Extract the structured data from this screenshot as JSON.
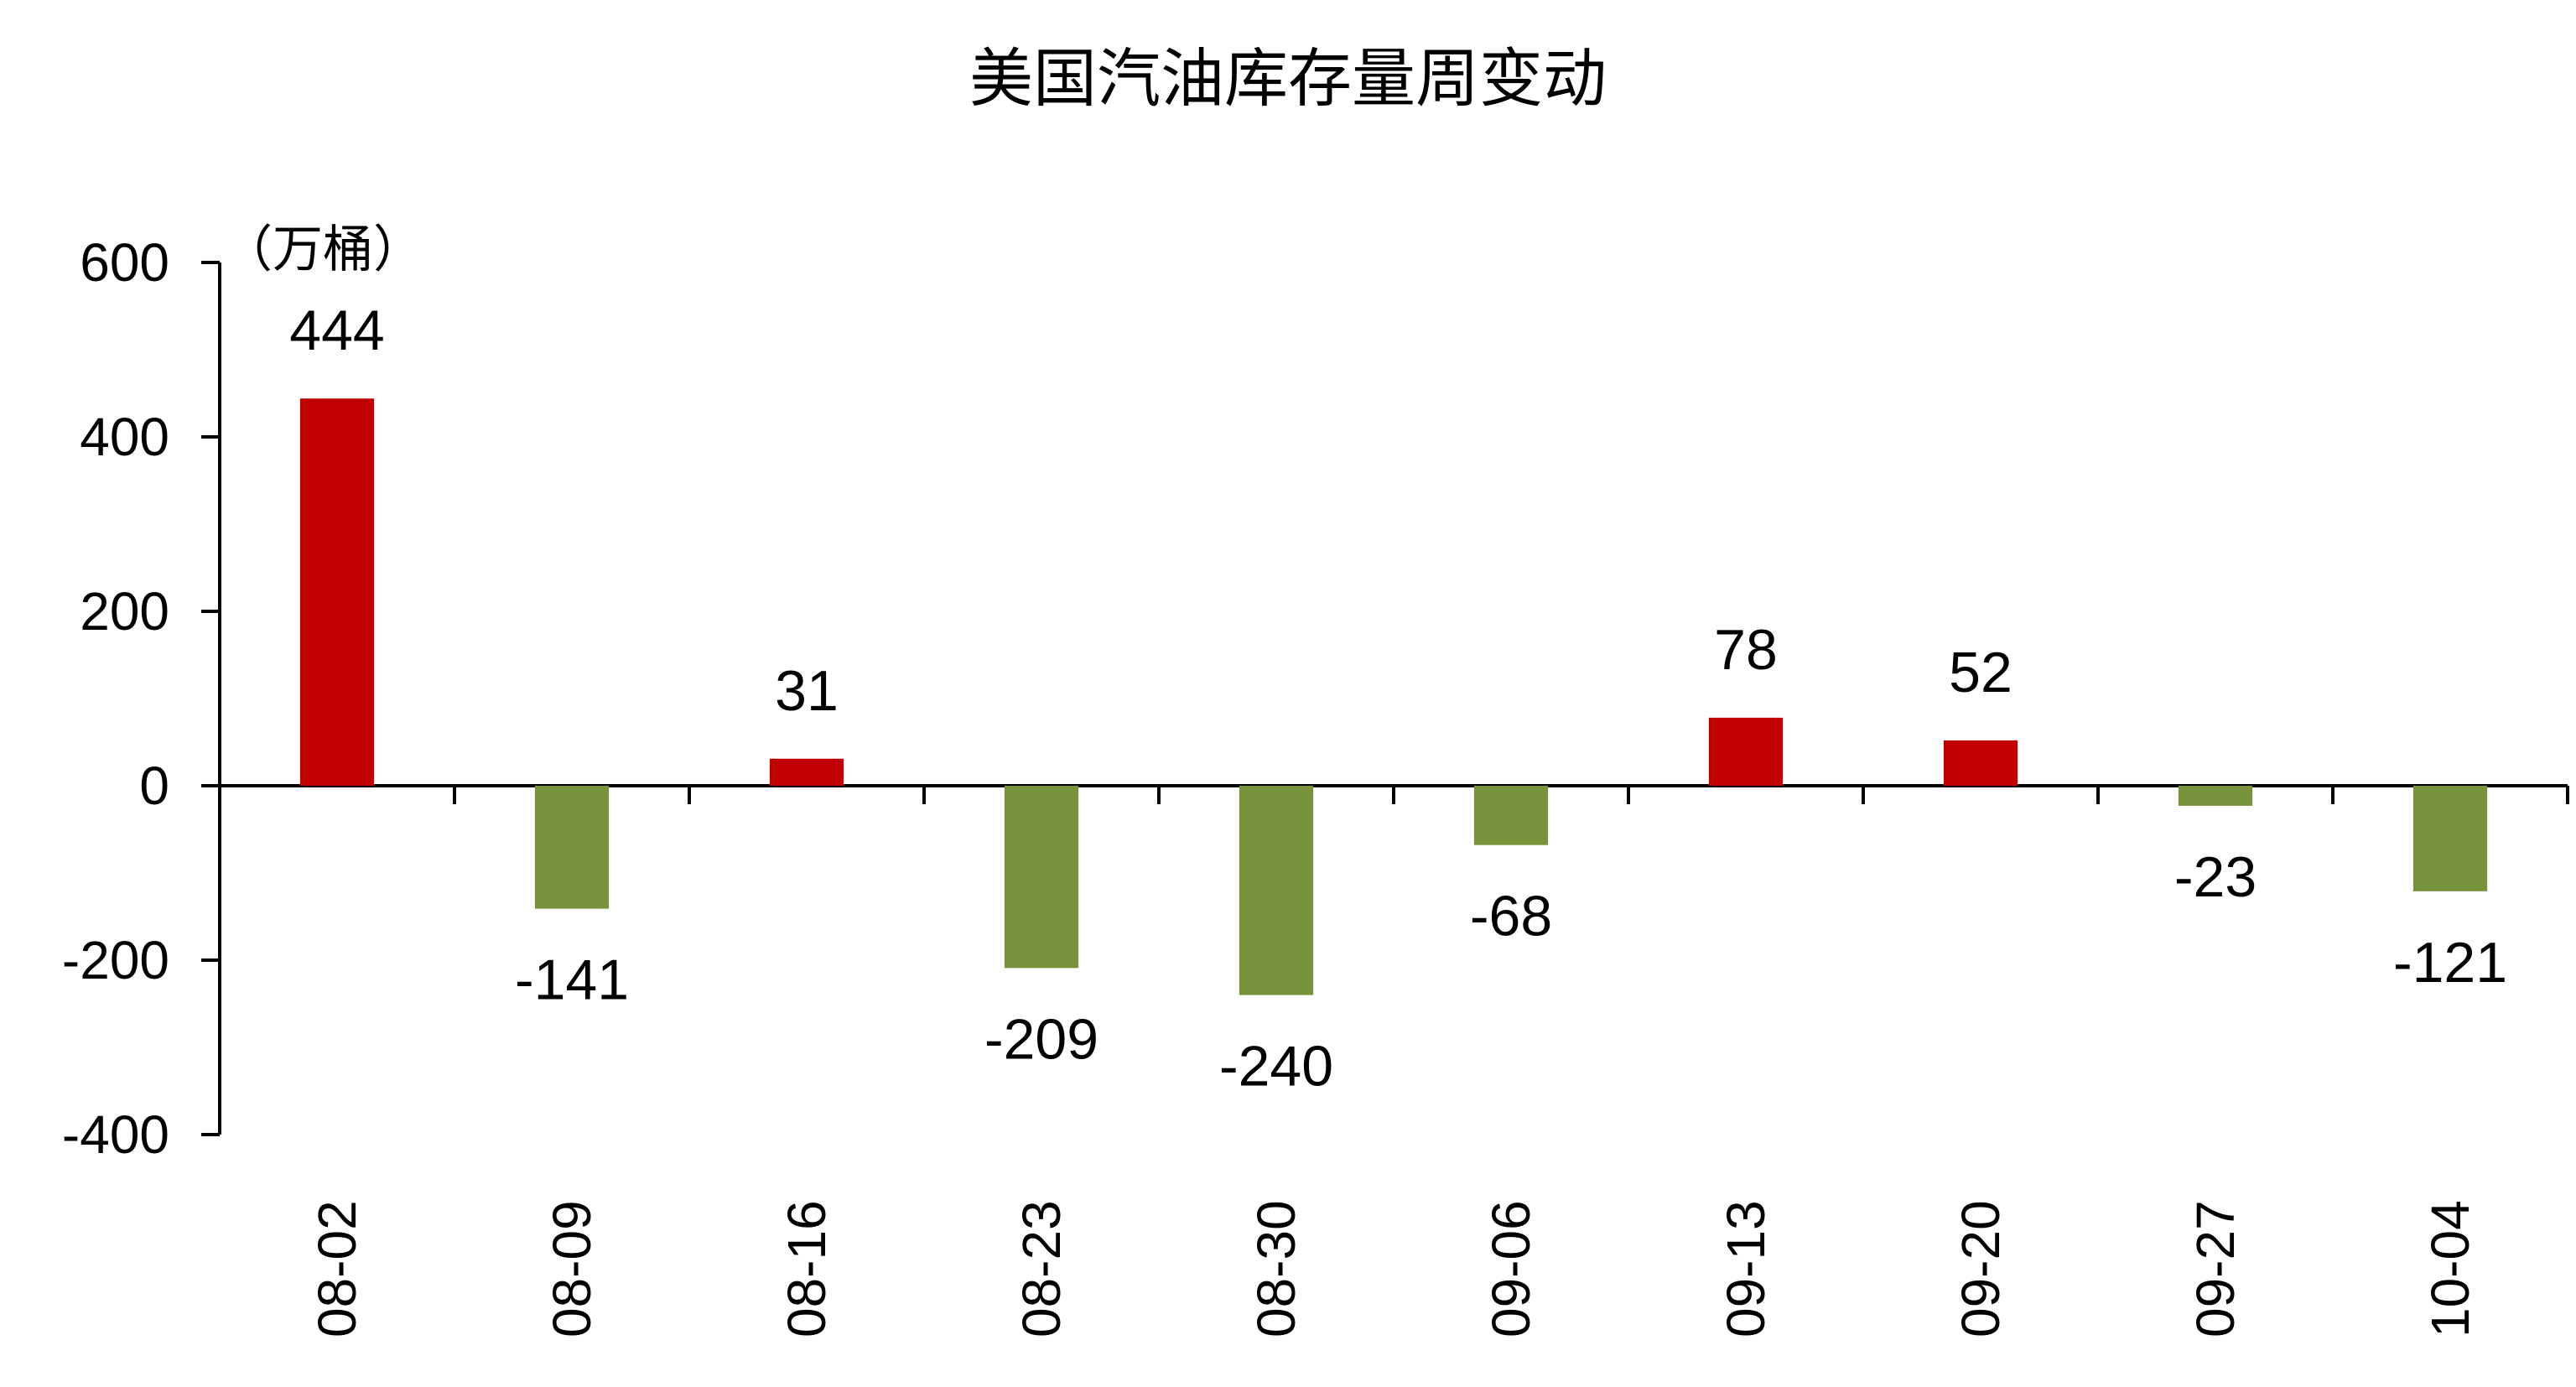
{
  "chart_data": {
    "type": "bar",
    "title": "美国汽油库存量周变动",
    "unit_label": "（万桶）",
    "categories": [
      "08-02",
      "08-09",
      "08-16",
      "08-23",
      "08-30",
      "09-06",
      "09-13",
      "09-20",
      "09-27",
      "10-04"
    ],
    "values": [
      444,
      -141,
      31,
      -209,
      -240,
      -68,
      78,
      52,
      -23,
      -121
    ],
    "ylim": [
      -400,
      600
    ],
    "yticks": [
      600,
      400,
      200,
      0,
      -200,
      -400
    ],
    "grid": false,
    "legend": "none",
    "colors": {
      "positive": "#C00000",
      "negative": "#77933C",
      "axis": "#000000"
    }
  }
}
